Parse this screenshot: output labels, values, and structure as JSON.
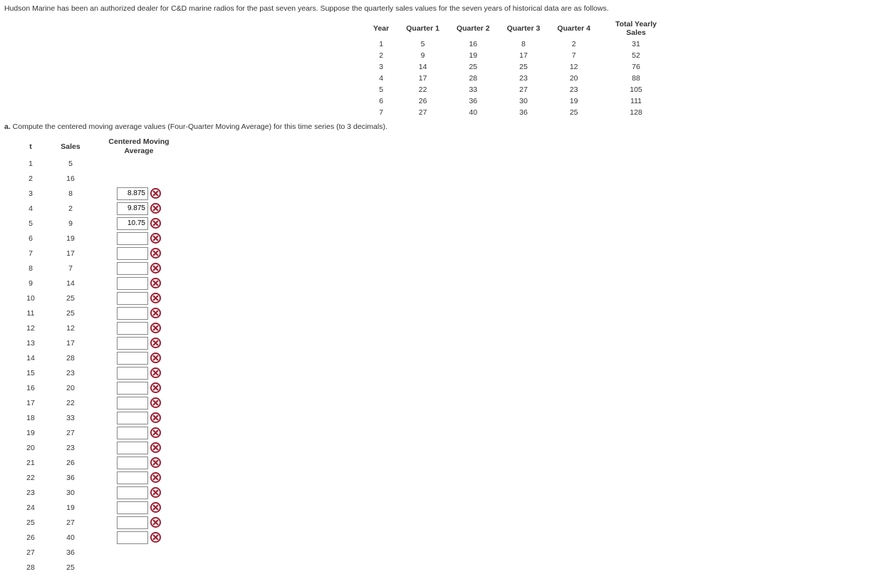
{
  "intro_text": "Hudson Marine has been an authorized dealer for C&D marine radios for the past seven years. Suppose the quarterly sales values for the seven years of historical data are as follows.",
  "data_table": {
    "headers": [
      "Year",
      "Quarter 1",
      "Quarter 2",
      "Quarter 3",
      "Quarter 4",
      "Total Yearly Sales"
    ],
    "rows": [
      [
        "1",
        "5",
        "16",
        "8",
        "2",
        "31"
      ],
      [
        "2",
        "9",
        "19",
        "17",
        "7",
        "52"
      ],
      [
        "3",
        "14",
        "25",
        "25",
        "12",
        "76"
      ],
      [
        "4",
        "17",
        "28",
        "23",
        "20",
        "88"
      ],
      [
        "5",
        "22",
        "33",
        "27",
        "23",
        "105"
      ],
      [
        "6",
        "26",
        "36",
        "30",
        "19",
        "111"
      ],
      [
        "7",
        "27",
        "40",
        "36",
        "25",
        "128"
      ]
    ]
  },
  "question": {
    "label": "a.",
    "text": " Compute the centered moving average values (Four-Quarter Moving Average) for this time series (to 3 decimals)."
  },
  "cma_table": {
    "headers": {
      "t": "t",
      "sales": "Sales",
      "cma": "Centered Moving Average"
    },
    "rows": [
      {
        "t": "1",
        "sales": "5",
        "has_input": false
      },
      {
        "t": "2",
        "sales": "16",
        "has_input": false
      },
      {
        "t": "3",
        "sales": "8",
        "has_input": true,
        "value": "8.875"
      },
      {
        "t": "4",
        "sales": "2",
        "has_input": true,
        "value": "9.875"
      },
      {
        "t": "5",
        "sales": "9",
        "has_input": true,
        "value": "10.75"
      },
      {
        "t": "6",
        "sales": "19",
        "has_input": true,
        "value": ""
      },
      {
        "t": "7",
        "sales": "17",
        "has_input": true,
        "value": ""
      },
      {
        "t": "8",
        "sales": "7",
        "has_input": true,
        "value": ""
      },
      {
        "t": "9",
        "sales": "14",
        "has_input": true,
        "value": ""
      },
      {
        "t": "10",
        "sales": "25",
        "has_input": true,
        "value": ""
      },
      {
        "t": "11",
        "sales": "25",
        "has_input": true,
        "value": ""
      },
      {
        "t": "12",
        "sales": "12",
        "has_input": true,
        "value": ""
      },
      {
        "t": "13",
        "sales": "17",
        "has_input": true,
        "value": ""
      },
      {
        "t": "14",
        "sales": "28",
        "has_input": true,
        "value": ""
      },
      {
        "t": "15",
        "sales": "23",
        "has_input": true,
        "value": ""
      },
      {
        "t": "16",
        "sales": "20",
        "has_input": true,
        "value": ""
      },
      {
        "t": "17",
        "sales": "22",
        "has_input": true,
        "value": ""
      },
      {
        "t": "18",
        "sales": "33",
        "has_input": true,
        "value": ""
      },
      {
        "t": "19",
        "sales": "27",
        "has_input": true,
        "value": ""
      },
      {
        "t": "20",
        "sales": "23",
        "has_input": true,
        "value": ""
      },
      {
        "t": "21",
        "sales": "26",
        "has_input": true,
        "value": ""
      },
      {
        "t": "22",
        "sales": "36",
        "has_input": true,
        "value": ""
      },
      {
        "t": "23",
        "sales": "30",
        "has_input": true,
        "value": ""
      },
      {
        "t": "24",
        "sales": "19",
        "has_input": true,
        "value": ""
      },
      {
        "t": "25",
        "sales": "27",
        "has_input": true,
        "value": ""
      },
      {
        "t": "26",
        "sales": "40",
        "has_input": true,
        "value": ""
      },
      {
        "t": "27",
        "sales": "36",
        "has_input": false
      },
      {
        "t": "28",
        "sales": "25",
        "has_input": false
      }
    ]
  },
  "colors": {
    "icon_ring": "#9a1b2e",
    "icon_fill_light": "#f5eaea",
    "icon_x": "#9a1b2e"
  }
}
